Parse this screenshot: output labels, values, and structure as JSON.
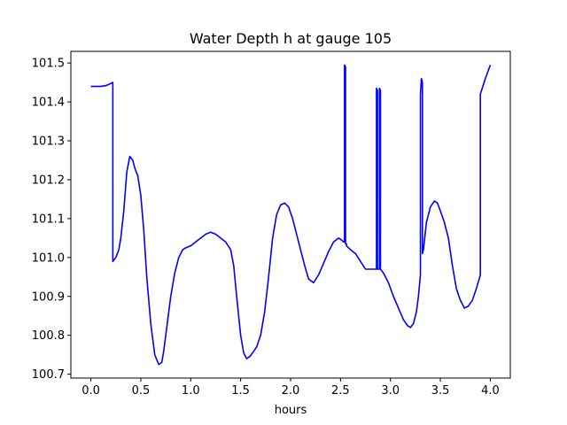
{
  "chart_data": {
    "type": "line",
    "title": "Water Depth h at gauge 105",
    "xlabel": "hours",
    "ylabel": "",
    "xlim": [
      -0.2,
      4.2
    ],
    "ylim": [
      100.69,
      101.53
    ],
    "xticks": [
      0.0,
      0.5,
      1.0,
      1.5,
      2.0,
      2.5,
      3.0,
      3.5,
      4.0
    ],
    "xtick_labels": [
      "0.0",
      "0.5",
      "1.0",
      "1.5",
      "2.0",
      "2.5",
      "3.0",
      "3.5",
      "4.0"
    ],
    "yticks": [
      100.7,
      100.8,
      100.9,
      101.0,
      101.1,
      101.2,
      101.3,
      101.4,
      101.5
    ],
    "ytick_labels": [
      "100.7",
      "100.8",
      "100.9",
      "101.0",
      "101.1",
      "101.2",
      "101.3",
      "101.4",
      "101.5"
    ],
    "grid": false,
    "series": [
      {
        "color": "#0000ff",
        "x": [
          0.0,
          0.1,
          0.15,
          0.18,
          0.22,
          0.22,
          0.25,
          0.28,
          0.3,
          0.33,
          0.36,
          0.39,
          0.42,
          0.44,
          0.47,
          0.5,
          0.53,
          0.56,
          0.6,
          0.64,
          0.68,
          0.71,
          0.73,
          0.76,
          0.8,
          0.84,
          0.88,
          0.92,
          0.95,
          1.0,
          1.05,
          1.1,
          1.15,
          1.2,
          1.25,
          1.3,
          1.35,
          1.4,
          1.43,
          1.46,
          1.5,
          1.53,
          1.56,
          1.59,
          1.62,
          1.66,
          1.7,
          1.74,
          1.78,
          1.82,
          1.86,
          1.9,
          1.94,
          1.98,
          2.02,
          2.06,
          2.1,
          2.14,
          2.18,
          2.23,
          2.28,
          2.33,
          2.38,
          2.43,
          2.48,
          2.51,
          2.53,
          2.54,
          2.54,
          2.55,
          2.55,
          2.56,
          2.56,
          2.6,
          2.65,
          2.7,
          2.75,
          2.8,
          2.86,
          2.86,
          2.87,
          2.87,
          2.89,
          2.89,
          2.9,
          2.9,
          2.93,
          2.98,
          3.03,
          3.08,
          3.13,
          3.17,
          3.2,
          3.23,
          3.26,
          3.28,
          3.3,
          3.3,
          3.31,
          3.32,
          3.32,
          3.33,
          3.36,
          3.4,
          3.44,
          3.47,
          3.5,
          3.54,
          3.58,
          3.62,
          3.66,
          3.7,
          3.74,
          3.78,
          3.82,
          3.86,
          3.9,
          3.9,
          3.95,
          4.0
        ],
        "y": [
          101.44,
          101.44,
          101.442,
          101.445,
          101.45,
          100.99,
          101.0,
          101.02,
          101.05,
          101.12,
          101.22,
          101.26,
          101.25,
          101.23,
          101.21,
          101.16,
          101.07,
          100.95,
          100.83,
          100.75,
          100.725,
          100.73,
          100.76,
          100.82,
          100.9,
          100.96,
          101.0,
          101.02,
          101.025,
          101.03,
          101.04,
          101.05,
          101.06,
          101.065,
          101.06,
          101.05,
          101.04,
          101.02,
          100.98,
          100.9,
          100.8,
          100.755,
          100.74,
          100.745,
          100.755,
          100.77,
          100.8,
          100.86,
          100.95,
          101.05,
          101.11,
          101.135,
          101.14,
          101.13,
          101.1,
          101.06,
          101.02,
          100.98,
          100.945,
          100.935,
          100.955,
          100.985,
          101.015,
          101.04,
          101.05,
          101.045,
          101.04,
          101.04,
          101.495,
          101.49,
          101.035,
          101.035,
          101.03,
          101.02,
          101.01,
          100.99,
          100.97,
          100.97,
          100.97,
          101.435,
          101.43,
          100.97,
          100.97,
          101.435,
          101.43,
          100.97,
          100.96,
          100.935,
          100.9,
          100.87,
          100.84,
          100.825,
          100.82,
          100.83,
          100.86,
          100.9,
          100.955,
          101.42,
          101.46,
          101.45,
          101.01,
          101.02,
          101.09,
          101.13,
          101.145,
          101.14,
          101.12,
          101.09,
          101.05,
          100.98,
          100.92,
          100.89,
          100.87,
          100.875,
          100.89,
          100.92,
          100.955,
          101.42,
          101.46,
          101.495
        ]
      }
    ]
  }
}
